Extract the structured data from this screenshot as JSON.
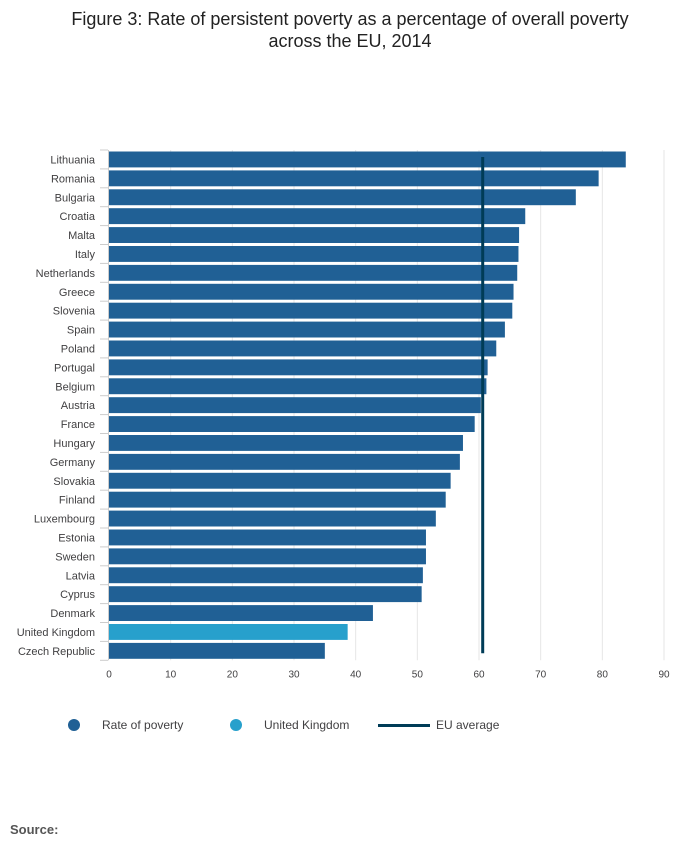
{
  "title_line1": "Figure 3: Rate of persistent poverty as a percentage of overall poverty",
  "title_line2": "across the EU, 2014",
  "source_label": "Source:",
  "legend": {
    "rate_label": "Rate of poverty",
    "uk_label": "United Kingdom",
    "eu_label": "EU average"
  },
  "colors": {
    "rate": "#206095",
    "uk": "#27a0cc",
    "eu_average": "#003c57",
    "grid": "#e6e6e6"
  },
  "chart_data": {
    "type": "bar",
    "orientation": "horizontal",
    "categories": [
      "Lithuania",
      "Romania",
      "Bulgaria",
      "Croatia",
      "Malta",
      "Italy",
      "Netherlands",
      "Greece",
      "Slovenia",
      "Spain",
      "Poland",
      "Portugal",
      "Belgium",
      "Austria",
      "France",
      "Hungary",
      "Germany",
      "Slovakia",
      "Finland",
      "Luxembourg",
      "Estonia",
      "Sweden",
      "Latvia",
      "Cyprus",
      "Denmark",
      "United Kingdom",
      "Czech Republic"
    ],
    "values": [
      83.8,
      79.4,
      75.7,
      67.5,
      66.5,
      66.4,
      66.2,
      65.6,
      65.4,
      64.2,
      62.8,
      61.4,
      61.2,
      60.3,
      59.3,
      57.4,
      56.9,
      55.4,
      54.6,
      53.0,
      51.4,
      51.4,
      50.9,
      50.7,
      42.8,
      38.7,
      35.0
    ],
    "highlight_index": 25,
    "highlight_category": "United Kingdom",
    "eu_average": 60.6,
    "xlim": [
      0,
      90
    ],
    "xticks": [
      "0",
      "10",
      "20",
      "30",
      "40",
      "50",
      "60",
      "70",
      "80",
      "90"
    ],
    "xlabel": "",
    "ylabel": "",
    "grid": true,
    "legend_position": "bottom"
  }
}
